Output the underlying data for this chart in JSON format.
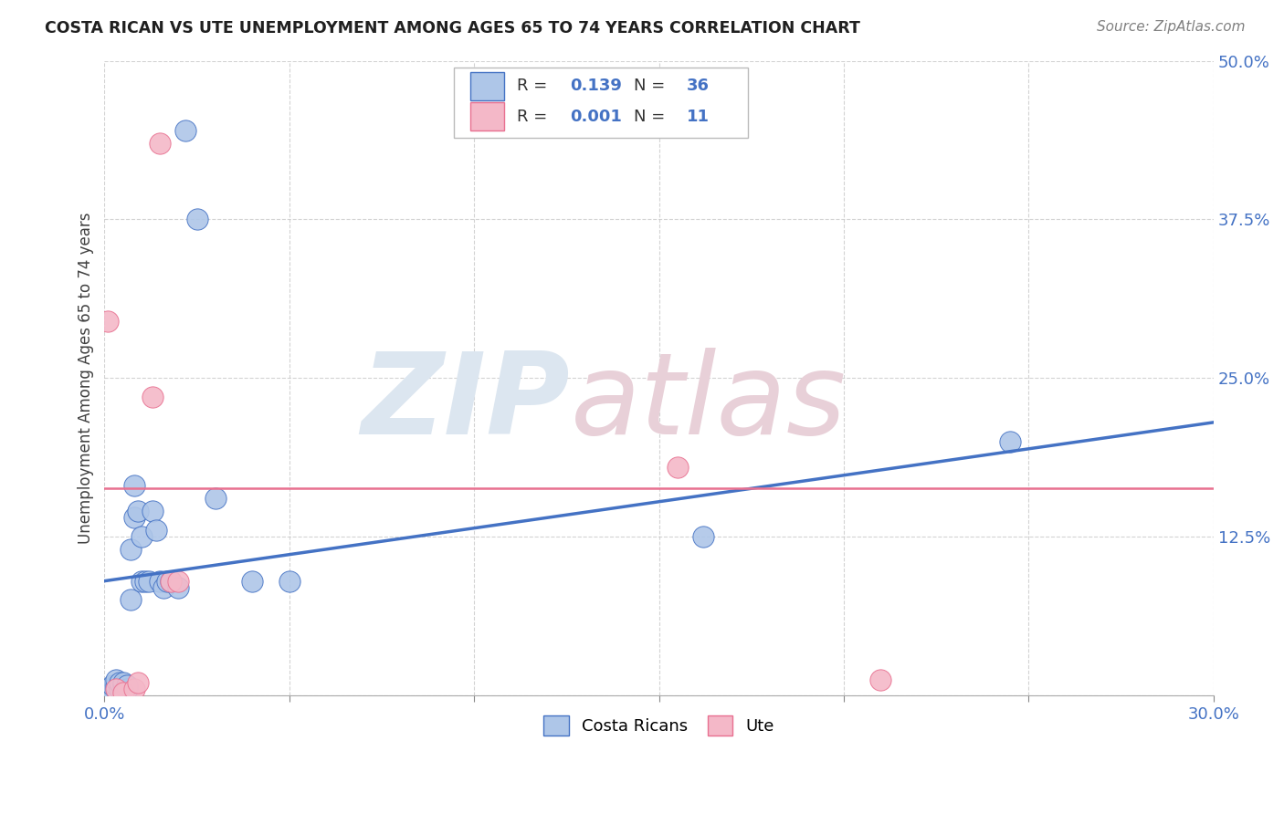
{
  "title": "COSTA RICAN VS UTE UNEMPLOYMENT AMONG AGES 65 TO 74 YEARS CORRELATION CHART",
  "source": "Source: ZipAtlas.com",
  "ylabel": "Unemployment Among Ages 65 to 74 years",
  "xlim": [
    0.0,
    0.3
  ],
  "ylim": [
    0.0,
    0.5
  ],
  "xticks": [
    0.0,
    0.05,
    0.1,
    0.15,
    0.2,
    0.25,
    0.3
  ],
  "xticklabels": [
    "0.0%",
    "",
    "",
    "",
    "",
    "",
    "30.0%"
  ],
  "yticks": [
    0.0,
    0.125,
    0.25,
    0.375,
    0.5
  ],
  "yticklabels": [
    "",
    "12.5%",
    "25.0%",
    "37.5%",
    "50.0%"
  ],
  "blue_r": "0.139",
  "blue_n": "36",
  "pink_r": "0.001",
  "pink_n": "11",
  "blue_color": "#aec6e8",
  "pink_color": "#f4b8c8",
  "blue_line_color": "#4472c4",
  "pink_line_color": "#e87090",
  "watermark_zip": "ZIP",
  "watermark_atlas": "atlas",
  "watermark_color": "#dce6f0",
  "legend_label_blue": "Costa Ricans",
  "legend_label_pink": "Ute",
  "blue_scatter_x": [
    0.001,
    0.002,
    0.002,
    0.003,
    0.003,
    0.003,
    0.004,
    0.004,
    0.005,
    0.005,
    0.005,
    0.006,
    0.006,
    0.007,
    0.007,
    0.008,
    0.008,
    0.009,
    0.01,
    0.01,
    0.011,
    0.012,
    0.013,
    0.014,
    0.015,
    0.016,
    0.017,
    0.018,
    0.02,
    0.022,
    0.025,
    0.03,
    0.04,
    0.05,
    0.162,
    0.245
  ],
  "blue_scatter_y": [
    0.005,
    0.003,
    0.008,
    0.005,
    0.008,
    0.012,
    0.005,
    0.01,
    0.003,
    0.008,
    0.01,
    0.005,
    0.008,
    0.115,
    0.075,
    0.14,
    0.165,
    0.145,
    0.09,
    0.125,
    0.09,
    0.09,
    0.145,
    0.13,
    0.09,
    0.085,
    0.09,
    0.09,
    0.085,
    0.445,
    0.375,
    0.155,
    0.09,
    0.09,
    0.125,
    0.2
  ],
  "pink_scatter_x": [
    0.001,
    0.003,
    0.005,
    0.008,
    0.009,
    0.013,
    0.015,
    0.018,
    0.02,
    0.155,
    0.21
  ],
  "pink_scatter_y": [
    0.295,
    0.005,
    0.002,
    0.005,
    0.01,
    0.235,
    0.435,
    0.09,
    0.09,
    0.18,
    0.012
  ],
  "blue_trend_x": [
    0.0,
    0.3
  ],
  "blue_trend_y": [
    0.09,
    0.215
  ],
  "pink_trend_x": [
    0.0,
    0.3
  ],
  "pink_trend_y": [
    0.163,
    0.163
  ]
}
